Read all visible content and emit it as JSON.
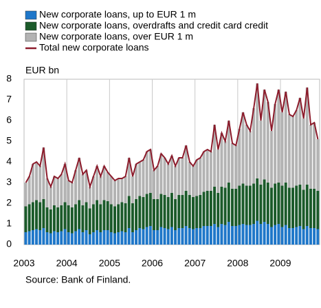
{
  "chart_data": {
    "type": "stacked-bar-line",
    "y_axis_label": "EUR bn",
    "source": "Source: Bank of Finland.",
    "categories": [
      "2003",
      null,
      null,
      null,
      null,
      null,
      null,
      null,
      null,
      null,
      null,
      null,
      "2004",
      null,
      null,
      null,
      null,
      null,
      null,
      null,
      null,
      null,
      null,
      null,
      "2005",
      null,
      null,
      null,
      null,
      null,
      null,
      null,
      null,
      null,
      null,
      null,
      "2006",
      null,
      null,
      null,
      null,
      null,
      null,
      null,
      null,
      null,
      null,
      null,
      "2007",
      null,
      null,
      null,
      null,
      null,
      null,
      null,
      null,
      null,
      null,
      null,
      "2008",
      null,
      null,
      null,
      null,
      null,
      null,
      null,
      null,
      null,
      null,
      null,
      "2009",
      null,
      null,
      null,
      null,
      null,
      null,
      null,
      null,
      null,
      null
    ],
    "series": [
      {
        "name": "New corporate loans, up to EUR 1 m",
        "color": "#1f77c9",
        "kind": "bar",
        "values": [
          0.6,
          0.65,
          0.7,
          0.75,
          0.7,
          0.8,
          0.6,
          0.55,
          0.65,
          0.6,
          0.65,
          0.75,
          0.6,
          0.55,
          0.65,
          0.75,
          0.6,
          0.7,
          0.5,
          0.6,
          0.7,
          0.6,
          0.7,
          0.7,
          0.6,
          0.55,
          0.6,
          0.65,
          0.6,
          0.8,
          0.6,
          0.7,
          0.8,
          0.75,
          0.85,
          0.9,
          0.7,
          0.7,
          0.85,
          0.8,
          0.75,
          0.85,
          0.7,
          0.8,
          0.8,
          0.9,
          0.8,
          0.75,
          0.8,
          0.8,
          0.9,
          0.9,
          0.9,
          1.0,
          0.85,
          1.0,
          0.95,
          1.1,
          0.9,
          0.9,
          0.95,
          1.0,
          0.95,
          0.95,
          1.0,
          1.15,
          1.0,
          1.1,
          1.0,
          0.85,
          0.95,
          1.0,
          0.85,
          0.95,
          0.8,
          0.8,
          0.85,
          0.9,
          0.75,
          0.9,
          0.8,
          0.8,
          0.75
        ]
      },
      {
        "name": "New corporate loans, overdrafts and credit card credit",
        "color": "#1b5a2a",
        "kind": "bar",
        "values": [
          1.25,
          1.3,
          1.35,
          1.4,
          1.35,
          1.4,
          1.2,
          1.15,
          1.25,
          1.2,
          1.25,
          1.3,
          1.3,
          1.25,
          1.3,
          1.4,
          1.3,
          1.35,
          1.25,
          1.35,
          1.45,
          1.35,
          1.45,
          1.4,
          1.35,
          1.3,
          1.35,
          1.4,
          1.4,
          1.55,
          1.4,
          1.5,
          1.55,
          1.55,
          1.6,
          1.6,
          1.5,
          1.5,
          1.6,
          1.6,
          1.55,
          1.65,
          1.5,
          1.6,
          1.6,
          1.7,
          1.6,
          1.55,
          1.55,
          1.6,
          1.65,
          1.7,
          1.7,
          1.8,
          1.65,
          1.8,
          1.8,
          1.9,
          1.8,
          1.8,
          1.9,
          1.95,
          1.9,
          1.9,
          1.95,
          2.05,
          1.9,
          2.05,
          2.0,
          1.9,
          2.0,
          2.0,
          2.0,
          2.05,
          1.95,
          1.95,
          2.0,
          2.0,
          1.9,
          2.0,
          1.9,
          1.9,
          1.85
        ]
      },
      {
        "name": "New corporate loans, over EUR 1 m",
        "color": "#b3b3b3",
        "kind": "bar",
        "values": [
          1.15,
          1.35,
          1.85,
          1.85,
          1.75,
          2.5,
          1.4,
          1.1,
          1.4,
          1.4,
          1.5,
          1.85,
          1.2,
          1.2,
          1.65,
          2.05,
          1.5,
          1.55,
          1.05,
          1.35,
          1.65,
          1.35,
          1.65,
          1.4,
          1.35,
          1.25,
          1.25,
          1.15,
          1.3,
          1.85,
          1.3,
          1.7,
          1.65,
          1.8,
          2.05,
          2.1,
          1.4,
          1.6,
          1.95,
          1.8,
          1.6,
          1.8,
          1.6,
          1.8,
          1.8,
          2.2,
          1.6,
          1.5,
          1.75,
          1.8,
          1.95,
          2.0,
          1.9,
          3.0,
          2.1,
          2.6,
          2.25,
          3.0,
          2.2,
          2.1,
          2.75,
          3.45,
          2.95,
          2.65,
          3.65,
          4.6,
          3.1,
          4.35,
          3.9,
          2.75,
          3.85,
          4.5,
          3.55,
          4.4,
          3.55,
          3.45,
          3.65,
          4.2,
          3.45,
          4.7,
          3.1,
          3.2,
          2.5
        ]
      },
      {
        "name": "Total new corporate loans",
        "color": "#8c1b2b",
        "kind": "line",
        "values": [
          3.0,
          3.3,
          3.9,
          4.0,
          3.8,
          4.7,
          3.2,
          2.8,
          3.3,
          3.2,
          3.4,
          3.9,
          3.1,
          3.0,
          3.6,
          4.2,
          3.4,
          3.6,
          2.8,
          3.3,
          3.8,
          3.3,
          3.8,
          3.5,
          3.3,
          3.1,
          3.2,
          3.2,
          3.3,
          4.2,
          3.3,
          3.9,
          4.0,
          4.1,
          4.5,
          4.6,
          3.6,
          3.8,
          4.4,
          4.2,
          3.9,
          4.3,
          3.8,
          4.2,
          4.2,
          4.8,
          4.0,
          3.8,
          4.1,
          4.2,
          4.5,
          4.6,
          4.5,
          5.8,
          4.6,
          5.4,
          5.0,
          6.0,
          4.9,
          4.8,
          5.6,
          6.4,
          5.8,
          5.5,
          6.6,
          7.8,
          6.0,
          7.5,
          6.9,
          5.5,
          6.8,
          7.5,
          6.4,
          7.4,
          6.3,
          6.2,
          6.5,
          7.1,
          6.1,
          7.6,
          5.8,
          5.9,
          5.1
        ]
      }
    ],
    "ylim": [
      0,
      8
    ],
    "yticks": [
      0,
      1,
      2,
      3,
      4,
      5,
      6,
      7,
      8
    ],
    "grid": "x",
    "legend": "top"
  }
}
